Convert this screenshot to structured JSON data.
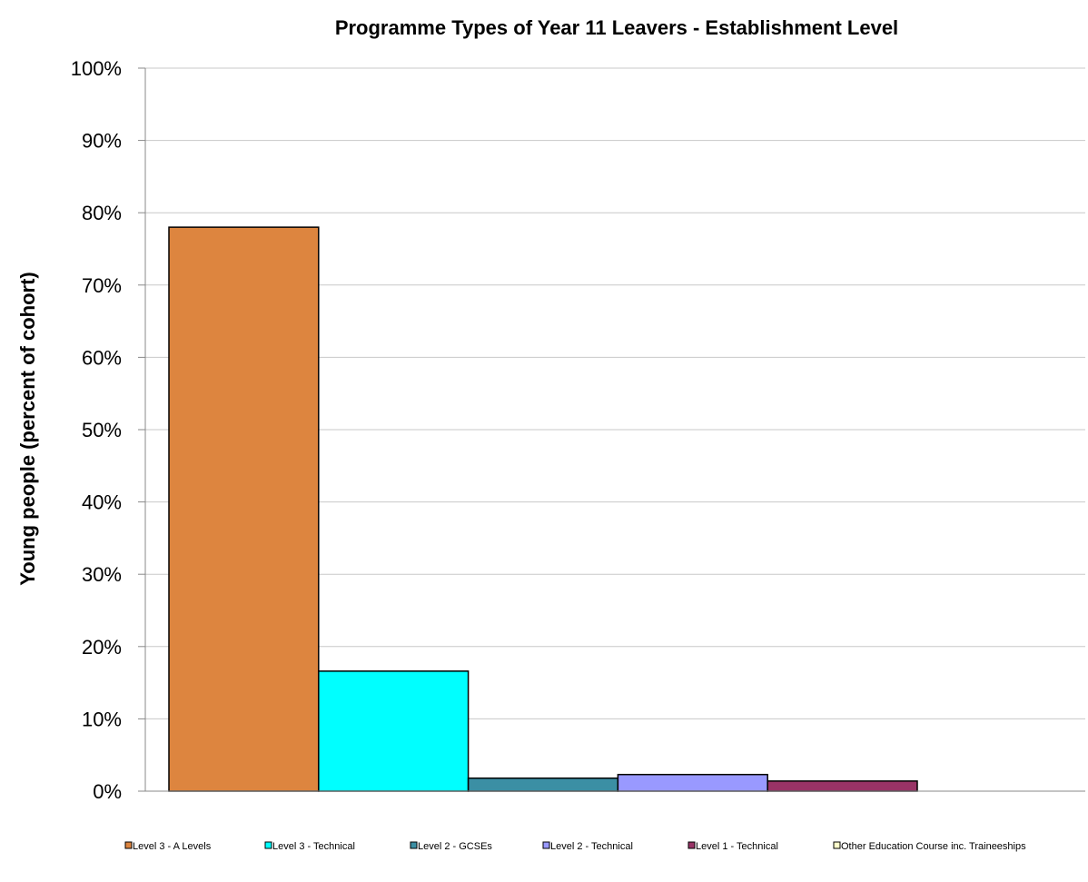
{
  "chart_data": {
    "type": "bar",
    "title": "Programme Types of Year 11 Leavers - Establishment  Level",
    "xlabel": "",
    "ylabel": "Young people (percent of cohort)",
    "ylim": [
      0,
      100
    ],
    "yticks": [
      "0%",
      "10%",
      "20%",
      "30%",
      "40%",
      "50%",
      "60%",
      "70%",
      "80%",
      "90%",
      "100%"
    ],
    "grid": true,
    "legend_position": "bottom",
    "series": [
      {
        "name": "Level 3 - A Levels",
        "value": 78.0,
        "color": "#DD853F"
      },
      {
        "name": "Level 3 - Technical",
        "value": 16.6,
        "color": "#00FFFF"
      },
      {
        "name": "Level 2 - GCSEs",
        "value": 1.8,
        "color": "#3B8FA4"
      },
      {
        "name": "Level 2 - Technical",
        "value": 2.3,
        "color": "#9999FF"
      },
      {
        "name": "Level 1 - Technical",
        "value": 1.4,
        "color": "#993366"
      },
      {
        "name": "Other Education Course inc. Traineeships",
        "value": 0,
        "color": "#FFFFCC"
      }
    ]
  }
}
